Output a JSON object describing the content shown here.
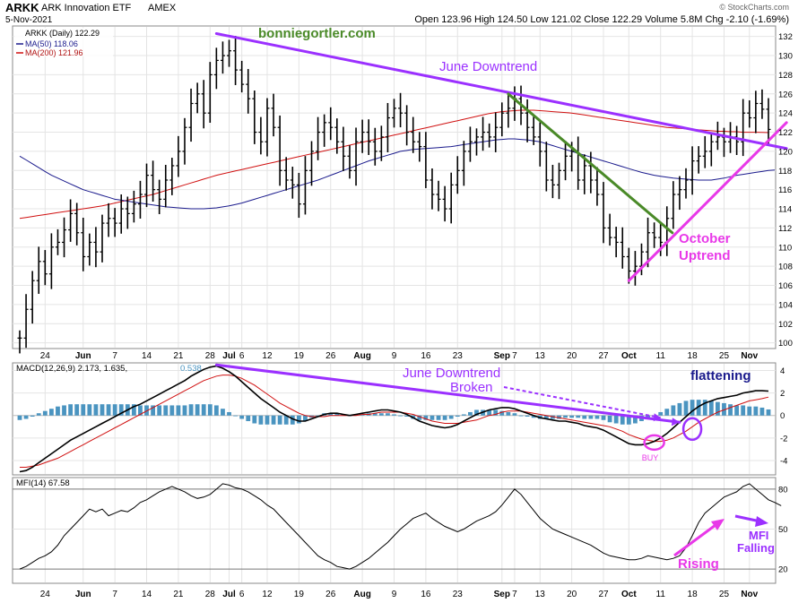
{
  "header": {
    "symbol": "ARKK",
    "name": "ARK Innovation ETF",
    "exchange": "AMEX",
    "date": "5-Nov-2021",
    "quote": "Open 123.96  High 124.50  Low 121.02  Close 122.29  Volume 5.8M  Chg -2.10 (-1.69%)",
    "watermark": "© StockCharts.com"
  },
  "legend": {
    "price": "ARKK (Daily) 122.29",
    "ma50": "MA(50) 118.06",
    "ma200": "MA(200) 121.96",
    "macd_prefix": "MACD(12,26,9) 2.173, 1.635,",
    "macd_hist_value": "0.538",
    "mfi": "MFI(14) 67.58"
  },
  "annotations": {
    "website": "bonniegortler.com",
    "june_downtrend": "June Downtrend",
    "october_line1": "October",
    "october_line2": "Uptrend",
    "june_broken_line1": "June Downtrend",
    "june_broken_line2": "Broken",
    "flattening": "flattening",
    "buy": "BUY",
    "rising": "Rising",
    "mfi_line1": "MFI",
    "mfi_line2": "Falling"
  },
  "colors": {
    "purple": "#9b30ff",
    "magenta": "#e838e8",
    "green": "#4a8a28",
    "navy": "#1a1a8c",
    "red": "#d01010",
    "hist": "#4a94c0",
    "price_bar": "#000000"
  },
  "chart_data": [
    {
      "type": "ohlc",
      "title": "ARKK ARK Innovation ETF",
      "y_ticks": [
        100,
        102,
        104,
        106,
        108,
        110,
        112,
        114,
        116,
        118,
        120,
        122,
        124,
        126,
        128,
        130,
        132
      ],
      "ylim": [
        99.5,
        133
      ],
      "x_ticks": [
        {
          "label": "24",
          "i": 4
        },
        {
          "label": "Jun",
          "i": 10
        },
        {
          "label": "7",
          "i": 15
        },
        {
          "label": "14",
          "i": 20
        },
        {
          "label": "21",
          "i": 25
        },
        {
          "label": "28",
          "i": 30
        },
        {
          "label": "Jul",
          "i": 33
        },
        {
          "label": "6",
          "i": 35
        },
        {
          "label": "12",
          "i": 39
        },
        {
          "label": "19",
          "i": 44
        },
        {
          "label": "26",
          "i": 49
        },
        {
          "label": "Aug",
          "i": 54
        },
        {
          "label": "9",
          "i": 59
        },
        {
          "label": "16",
          "i": 64
        },
        {
          "label": "23",
          "i": 69
        },
        {
          "label": "Sep",
          "i": 76
        },
        {
          "label": "7",
          "i": 78
        },
        {
          "label": "13",
          "i": 82
        },
        {
          "label": "20",
          "i": 87
        },
        {
          "label": "27",
          "i": 92
        },
        {
          "label": "Oct",
          "i": 96
        },
        {
          "label": "11",
          "i": 101
        },
        {
          "label": "18",
          "i": 106
        },
        {
          "label": "25",
          "i": 111
        },
        {
          "label": "Nov",
          "i": 115
        }
      ],
      "close": [
        100.5,
        103.5,
        106.5,
        108.5,
        107.2,
        110.0,
        110.5,
        111.8,
        113.5,
        111.5,
        109.0,
        110.5,
        109.5,
        112.5,
        113.0,
        112.5,
        114.0,
        113.5,
        114.5,
        115.5,
        117.5,
        116.0,
        115.0,
        117.0,
        118.5,
        120.0,
        122.5,
        125.0,
        126.0,
        124.0,
        128.0,
        129.5,
        130.0,
        130.5,
        128.5,
        127.0,
        125.5,
        122.0,
        121.0,
        124.5,
        122.5,
        118.0,
        117.0,
        116.5,
        114.5,
        118.0,
        120.0,
        122.0,
        123.0,
        122.5,
        121.0,
        119.5,
        118.0,
        121.0,
        122.0,
        121.0,
        120.0,
        121.5,
        123.5,
        124.5,
        124.0,
        122.0,
        121.0,
        120.5,
        117.0,
        115.5,
        115.0,
        114.0,
        116.5,
        118.0,
        120.0,
        121.0,
        121.5,
        122.0,
        121.5,
        122.5,
        124.0,
        124.5,
        125.5,
        124.0,
        122.5,
        121.5,
        120.0,
        117.0,
        116.5,
        118.0,
        119.5,
        120.0,
        117.0,
        118.5,
        117.0,
        115.5,
        112.0,
        111.0,
        110.5,
        109.0,
        107.5,
        108.0,
        109.5,
        111.5,
        111.0,
        110.5,
        113.0,
        115.5,
        116.0,
        117.0,
        119.0,
        119.5,
        120.0,
        121.0,
        121.5,
        121.0,
        121.5,
        121.0,
        124.0,
        123.5,
        125.0,
        124.4,
        122.29
      ],
      "range_amplitude": 1.6,
      "ma50": [
        119.5,
        119.1,
        118.7,
        118.3,
        117.9,
        117.5,
        117.2,
        116.9,
        116.6,
        116.3,
        116.0,
        115.8,
        115.6,
        115.4,
        115.2,
        115.0,
        114.9,
        114.8,
        114.7,
        114.6,
        114.5,
        114.4,
        114.3,
        114.2,
        114.15,
        114.1,
        114.05,
        114.0,
        114.0,
        114.0,
        114.05,
        114.1,
        114.2,
        114.3,
        114.45,
        114.6,
        114.8,
        115.0,
        115.2,
        115.4,
        115.6,
        115.8,
        116.0,
        116.2,
        116.4,
        116.6,
        116.8,
        117.0,
        117.25,
        117.5,
        117.75,
        118.0,
        118.25,
        118.5,
        118.75,
        119.0,
        119.2,
        119.4,
        119.6,
        119.8,
        120.0,
        120.1,
        120.2,
        120.25,
        120.3,
        120.35,
        120.4,
        120.45,
        120.5,
        120.6,
        120.7,
        120.8,
        120.9,
        121.0,
        121.1,
        121.2,
        121.25,
        121.3,
        121.3,
        121.25,
        121.2,
        121.1,
        121.0,
        120.8,
        120.6,
        120.4,
        120.2,
        120.0,
        119.8,
        119.6,
        119.4,
        119.2,
        119.0,
        118.8,
        118.6,
        118.4,
        118.2,
        118.0,
        117.8,
        117.65,
        117.5,
        117.4,
        117.3,
        117.2,
        117.15,
        117.1,
        117.05,
        117.0,
        117.0,
        117.0,
        117.1,
        117.2,
        117.35,
        117.5,
        117.6,
        117.7,
        117.8,
        117.9,
        118.0,
        118.06
      ],
      "ma200": [
        113.0,
        113.1,
        113.2,
        113.3,
        113.4,
        113.5,
        113.6,
        113.7,
        113.8,
        113.9,
        114.0,
        114.1,
        114.2,
        114.3,
        114.45,
        114.6,
        114.75,
        114.9,
        115.05,
        115.2,
        115.35,
        115.5,
        115.7,
        115.9,
        116.1,
        116.3,
        116.5,
        116.7,
        116.9,
        117.1,
        117.3,
        117.5,
        117.65,
        117.8,
        117.95,
        118.1,
        118.25,
        118.4,
        118.55,
        118.7,
        118.85,
        119.0,
        119.15,
        119.3,
        119.45,
        119.6,
        119.75,
        119.9,
        120.05,
        120.2,
        120.35,
        120.5,
        120.65,
        120.8,
        120.95,
        121.1,
        121.25,
        121.4,
        121.55,
        121.7,
        121.85,
        122.0,
        122.15,
        122.3,
        122.45,
        122.6,
        122.75,
        122.9,
        123.05,
        123.2,
        123.35,
        123.5,
        123.65,
        123.8,
        123.95,
        124.05,
        124.15,
        124.2,
        124.25,
        124.3,
        124.3,
        124.3,
        124.25,
        124.2,
        124.15,
        124.1,
        124.05,
        124.0,
        123.9,
        123.8,
        123.7,
        123.6,
        123.5,
        123.4,
        123.3,
        123.2,
        123.1,
        123.0,
        122.9,
        122.8,
        122.7,
        122.6,
        122.5,
        122.45,
        122.4,
        122.35,
        122.3,
        122.25,
        122.2,
        122.15,
        122.1,
        122.1,
        122.05,
        122.05,
        122.0,
        122.0,
        122.0,
        121.98,
        121.96
      ],
      "trendlines": [
        {
          "name": "June Downtrend",
          "from": [
            31,
            132.3
          ],
          "to": [
            120,
            120.3
          ]
        },
        {
          "name": "green",
          "from": [
            77,
            126.0
          ],
          "to": [
            102,
            111.5
          ]
        },
        {
          "name": "October Uptrend",
          "from": [
            96,
            106.5
          ],
          "to": [
            120,
            123.0
          ]
        }
      ]
    },
    {
      "type": "macd",
      "y_ticks": [
        -4,
        -2,
        0,
        2,
        4
      ],
      "ylim": [
        -5.2,
        4.6
      ],
      "macd": [
        -5.0,
        -4.9,
        -4.6,
        -4.2,
        -3.8,
        -3.4,
        -3.0,
        -2.6,
        -2.2,
        -1.9,
        -1.6,
        -1.3,
        -1.0,
        -0.7,
        -0.4,
        -0.1,
        0.2,
        0.5,
        0.8,
        1.0,
        1.3,
        1.6,
        1.9,
        2.2,
        2.5,
        2.8,
        3.1,
        3.5,
        3.8,
        4.1,
        4.3,
        4.4,
        4.2,
        3.9,
        3.5,
        3.0,
        2.5,
        2.0,
        1.5,
        1.1,
        0.7,
        0.3,
        0.0,
        -0.3,
        -0.5,
        -0.5,
        -0.3,
        -0.1,
        0.1,
        0.2,
        0.2,
        0.1,
        0.0,
        0.1,
        0.2,
        0.3,
        0.4,
        0.5,
        0.5,
        0.4,
        0.3,
        0.1,
        -0.2,
        -0.5,
        -0.7,
        -0.9,
        -1.0,
        -1.1,
        -1.0,
        -0.8,
        -0.5,
        -0.2,
        0.1,
        0.3,
        0.5,
        0.6,
        0.7,
        0.7,
        0.6,
        0.4,
        0.2,
        0.0,
        -0.2,
        -0.3,
        -0.4,
        -0.5,
        -0.5,
        -0.6,
        -0.7,
        -0.9,
        -1.0,
        -1.1,
        -1.3,
        -1.6,
        -1.9,
        -2.2,
        -2.5,
        -2.6,
        -2.6,
        -2.5,
        -2.3,
        -2.0,
        -1.6,
        -1.1,
        -0.6,
        -0.1,
        0.4,
        0.8,
        1.1,
        1.3,
        1.5,
        1.6,
        1.7,
        1.8,
        2.0,
        2.1,
        2.2,
        2.2,
        2.173
      ],
      "signal": [
        -4.6,
        -4.6,
        -4.5,
        -4.4,
        -4.2,
        -4.0,
        -3.8,
        -3.5,
        -3.2,
        -2.9,
        -2.6,
        -2.3,
        -2.0,
        -1.7,
        -1.4,
        -1.1,
        -0.8,
        -0.5,
        -0.2,
        0.1,
        0.4,
        0.7,
        1.0,
        1.3,
        1.6,
        1.9,
        2.2,
        2.5,
        2.8,
        3.1,
        3.3,
        3.5,
        3.6,
        3.6,
        3.5,
        3.3,
        3.0,
        2.7,
        2.3,
        1.9,
        1.5,
        1.1,
        0.8,
        0.5,
        0.2,
        0.0,
        -0.1,
        -0.1,
        -0.1,
        0.0,
        0.0,
        0.0,
        0.0,
        0.0,
        0.1,
        0.1,
        0.2,
        0.3,
        0.3,
        0.3,
        0.3,
        0.2,
        0.1,
        -0.1,
        -0.3,
        -0.5,
        -0.6,
        -0.7,
        -0.7,
        -0.7,
        -0.6,
        -0.5,
        -0.4,
        -0.2,
        0.0,
        0.1,
        0.3,
        0.4,
        0.4,
        0.4,
        0.3,
        0.2,
        0.1,
        0.0,
        -0.1,
        -0.2,
        -0.3,
        -0.4,
        -0.5,
        -0.6,
        -0.7,
        -0.8,
        -0.9,
        -1.0,
        -1.2,
        -1.4,
        -1.7,
        -1.9,
        -2.1,
        -2.2,
        -2.3,
        -2.3,
        -2.2,
        -2.0,
        -1.7,
        -1.4,
        -1.0,
        -0.6,
        -0.3,
        0.0,
        0.3,
        0.5,
        0.7,
        0.9,
        1.1,
        1.3,
        1.4,
        1.5,
        1.635
      ]
    },
    {
      "type": "line",
      "y_ticks": [
        20,
        50,
        80
      ],
      "ylim": [
        10,
        88
      ],
      "mfi": [
        20,
        22,
        25,
        28,
        30,
        33,
        38,
        45,
        50,
        55,
        60,
        65,
        63,
        65,
        60,
        62,
        64,
        63,
        66,
        70,
        72,
        75,
        78,
        80,
        82,
        80,
        78,
        75,
        73,
        74,
        76,
        80,
        84,
        83,
        81,
        80,
        78,
        75,
        72,
        68,
        65,
        60,
        55,
        50,
        45,
        40,
        35,
        30,
        27,
        25,
        22,
        21,
        20,
        22,
        25,
        28,
        32,
        36,
        40,
        45,
        50,
        54,
        58,
        60,
        62,
        58,
        55,
        52,
        50,
        48,
        50,
        53,
        56,
        58,
        60,
        63,
        68,
        74,
        80,
        76,
        70,
        64,
        58,
        54,
        50,
        48,
        46,
        44,
        42,
        40,
        38,
        35,
        32,
        30,
        29,
        28,
        27,
        27,
        28,
        30,
        29,
        28,
        27,
        28,
        30,
        36,
        45,
        55,
        62,
        66,
        70,
        74,
        76,
        78,
        82,
        84,
        80,
        76,
        72,
        70,
        67.58
      ]
    }
  ]
}
